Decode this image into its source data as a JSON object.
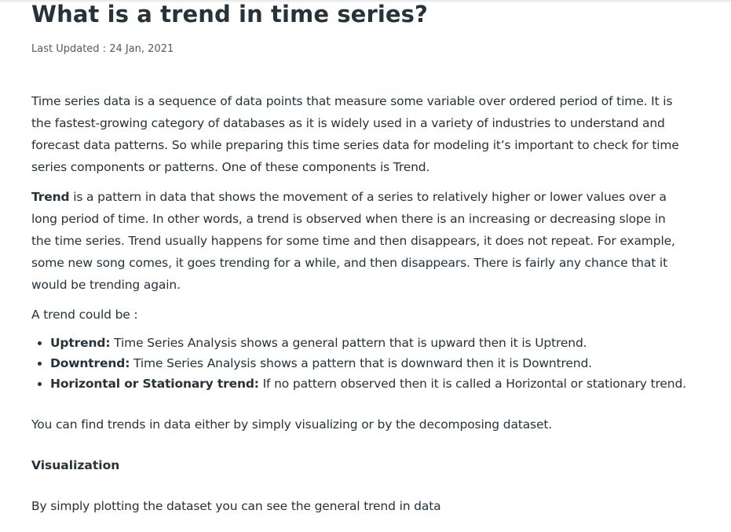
{
  "article": {
    "title": "What is a trend in time series?",
    "last_updated": "Last Updated : 24 Jan, 2021",
    "intro_lines": [
      "Time series data is a sequence of data points that measure some variable over ordered period of time. It is",
      "the fastest-growing category of databases as it is widely used in a variety of industries to understand and",
      "forecast data patterns. So while preparing this time series data for modeling it’s important to check for time",
      "series components or patterns.  One of these components is Trend."
    ],
    "trend_def": {
      "term": "Trend",
      "first_line_rest": " is a pattern in data that shows the movement of a series to relatively higher or lower values over a",
      "lines": [
        "long period of time. In other words, a trend is observed when there is an increasing or decreasing slope in",
        "the time series. Trend usually happens for some time and then disappears, it does not repeat. For example,",
        "some new song comes, it goes trending for a while, and then disappears. There is fairly any chance that it",
        "would be trending again."
      ]
    },
    "list_intro": "A trend could be :",
    "trend_types": [
      {
        "label": "Uptrend:",
        "text": " Time Series Analysis shows a general pattern that is upward then it is Uptrend."
      },
      {
        "label": "Downtrend:",
        "text": " Time Series Analysis shows a pattern that is downward then it is Downtrend."
      },
      {
        "label": "Horizontal or Stationary trend:",
        "text": " If no pattern observed then it is called a Horizontal or stationary trend."
      }
    ],
    "find_trends": "You can find trends in data either by simply visualizing or by the decomposing dataset.",
    "section_heading": "Visualization",
    "visualization_text": "By simply plotting the dataset you can see the general trend in data"
  }
}
